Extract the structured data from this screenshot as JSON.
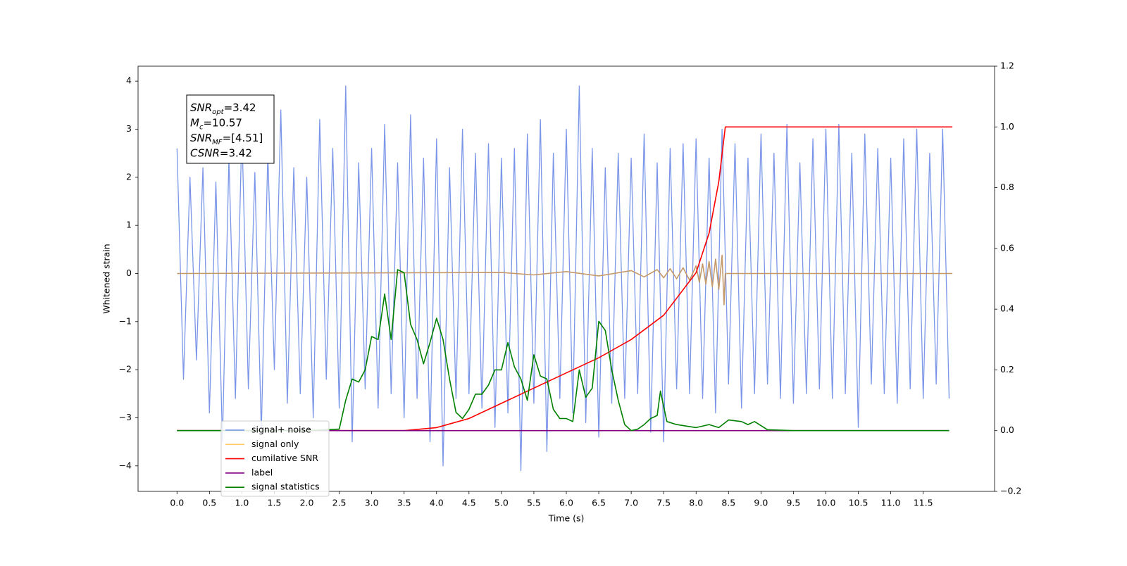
{
  "chart_data": {
    "type": "line",
    "xlabel": "Time (s)",
    "ylabel": "Whitened strain",
    "xlim": [
      -0.6,
      12.6
    ],
    "ylim": [
      -4.53,
      4.31
    ],
    "y2lim": [
      -0.2,
      1.2
    ],
    "xticks": [
      {
        "value": 0,
        "label": "0.0"
      },
      0.5,
      {
        "value": 1,
        "label": "1.0"
      },
      1.5,
      {
        "value": 2,
        "label": "2.0"
      },
      2.5,
      {
        "value": 3,
        "label": "3.0"
      },
      3.5,
      {
        "value": 4,
        "label": "4.0"
      },
      4.5,
      {
        "value": 5,
        "label": "5.0"
      },
      5.5,
      {
        "value": 6,
        "label": "6.0"
      },
      6.5,
      {
        "value": 7,
        "label": "7.0"
      },
      7.5,
      {
        "value": 8,
        "label": "8.0"
      },
      8.5,
      {
        "value": 9,
        "label": "9.0"
      },
      9.5,
      {
        "value": 10,
        "label": "10.0"
      },
      10.5,
      {
        "value": 11,
        "label": "11.0"
      },
      11.5
    ],
    "yticks": [
      {
        "value": -4,
        "label": "−4"
      },
      {
        "value": -3,
        "label": "−3"
      },
      {
        "value": -2,
        "label": "−2"
      },
      {
        "value": -1,
        "label": "−1"
      },
      0,
      1,
      2,
      3,
      4
    ],
    "y2ticks": [
      {
        "value": -0.2,
        "label": "−0.2"
      },
      {
        "value": 0,
        "label": "0.0"
      },
      0.2,
      0.4,
      0.6,
      0.8,
      {
        "value": 1,
        "label": "1.0"
      },
      1.2
    ],
    "annotation": [
      {
        "text": "SNR",
        "sub": "opt",
        "tail": "=3.42"
      },
      {
        "text": "M",
        "sub": "c",
        "tail": "=10.57"
      },
      {
        "text": "SNR",
        "sub": "MF",
        "tail": "=[4.51]"
      },
      {
        "text": "CSNR",
        "tail": "=3.42"
      }
    ],
    "series": [
      {
        "name": "signal+ noise",
        "color": "#7b96e8",
        "legend_color": "#6f8fe6",
        "x": [
          0,
          0.1,
          0.2,
          0.3,
          0.4,
          0.5,
          0.6,
          0.7,
          0.8,
          0.9,
          1,
          1.1,
          1.2,
          1.3,
          1.4,
          1.5,
          1.6,
          1.7,
          1.8,
          1.9,
          2,
          2.1,
          2.2,
          2.3,
          2.4,
          2.5,
          2.6,
          2.7,
          2.8,
          2.9,
          3,
          3.1,
          3.2,
          3.3,
          3.4,
          3.5,
          3.6,
          3.7,
          3.8,
          3.9,
          4,
          4.1,
          4.2,
          4.3,
          4.4,
          4.5,
          4.6,
          4.7,
          4.8,
          4.9,
          5,
          5.1,
          5.2,
          5.3,
          5.4,
          5.5,
          5.6,
          5.7,
          5.8,
          5.9,
          6,
          6.1,
          6.2,
          6.3,
          6.4,
          6.5,
          6.6,
          6.7,
          6.8,
          6.9,
          7,
          7.1,
          7.2,
          7.3,
          7.4,
          7.5,
          7.6,
          7.7,
          7.8,
          7.9,
          8,
          8.1,
          8.2,
          8.3,
          8.4,
          8.5,
          8.6,
          8.7,
          8.8,
          8.9,
          9,
          9.1,
          9.2,
          9.3,
          9.4,
          9.5,
          9.6,
          9.7,
          9.8,
          9.9,
          10,
          10.1,
          10.2,
          10.3,
          10.4,
          10.5,
          10.6,
          10.7,
          10.8,
          10.9,
          11,
          11.1,
          11.2,
          11.3,
          11.4,
          11.5,
          11.6,
          11.7,
          11.8,
          11.9
        ],
        "values": [
          2.6,
          -2.2,
          2.0,
          -1.8,
          2.2,
          -2.9,
          1.9,
          -3.5,
          2.4,
          -2.6,
          3.0,
          -2.4,
          2.1,
          -3.3,
          2.5,
          -2.0,
          3.4,
          -2.7,
          2.2,
          -2.5,
          2.0,
          -3.0,
          3.2,
          -2.2,
          2.6,
          -2.8,
          3.9,
          -3.5,
          2.3,
          -2.4,
          2.6,
          -2.8,
          3.1,
          -2.5,
          2.3,
          -3.0,
          3.3,
          -2.6,
          2.4,
          -3.5,
          2.8,
          -4.0,
          2.2,
          -2.6,
          3.0,
          -2.5,
          2.5,
          -2.8,
          2.7,
          -3.2,
          2.4,
          -2.9,
          2.6,
          -4.1,
          2.9,
          -2.7,
          3.2,
          -3.7,
          2.5,
          -2.6,
          3.0,
          -2.9,
          3.9,
          -3.1,
          2.6,
          -3.4,
          2.2,
          -2.7,
          2.5,
          -2.6,
          2.4,
          -2.5,
          2.9,
          -3.3,
          2.3,
          -3.5,
          2.6,
          -2.4,
          2.7,
          -2.5,
          2.8,
          -2.6,
          2.4,
          -2.9,
          3.0,
          -2.3,
          2.7,
          -2.8,
          2.4,
          -2.5,
          2.9,
          -2.3,
          2.5,
          -2.6,
          3.1,
          -2.7,
          2.3,
          -2.5,
          2.8,
          -2.4,
          3.0,
          -2.6,
          3.1,
          -2.5,
          2.5,
          -3.2,
          2.9,
          -2.3,
          2.6,
          -2.5,
          2.4,
          -2.7,
          2.8,
          -2.4,
          3.0,
          -2.6,
          2.5,
          -2.3,
          3.0,
          -2.6
        ]
      },
      {
        "name": "signal only",
        "color": "#c49a6c",
        "legend_color": "#ffc966",
        "x": [
          0,
          5.0,
          5.5,
          6.0,
          6.5,
          7.0,
          7.2,
          7.4,
          7.5,
          7.6,
          7.7,
          7.8,
          7.9,
          8.0,
          8.05,
          8.1,
          8.15,
          8.2,
          8.25,
          8.3,
          8.35,
          8.4,
          8.43,
          8.45,
          8.5,
          11.95
        ],
        "values": [
          0,
          0.02,
          -0.03,
          0.04,
          -0.05,
          0.06,
          -0.07,
          0.08,
          -0.09,
          0.1,
          -0.11,
          0.12,
          -0.14,
          0.16,
          -0.18,
          0.2,
          -0.22,
          0.25,
          -0.28,
          0.3,
          -0.33,
          0.38,
          -0.65,
          0,
          0,
          0
        ]
      },
      {
        "name": "cumilative SNR",
        "color": "#ff0000",
        "axis": "y2",
        "x": [
          0,
          3.5,
          4.0,
          4.5,
          5.0,
          5.5,
          6.0,
          6.5,
          7.0,
          7.5,
          8.0,
          8.2,
          8.35,
          8.45,
          11.95
        ],
        "values": [
          0,
          0,
          0.01,
          0.04,
          0.09,
          0.14,
          0.19,
          0.24,
          0.3,
          0.38,
          0.52,
          0.65,
          0.82,
          1.0,
          1.0
        ]
      },
      {
        "name": "label",
        "color": "#800080",
        "axis": "y2",
        "x": [
          0,
          11.9
        ],
        "values": [
          0,
          0
        ]
      },
      {
        "name": "signal statistics",
        "color": "#008000",
        "axis": "y2",
        "x": [
          0,
          0.5,
          1.0,
          1.5,
          2.0,
          2.5,
          2.6,
          2.7,
          2.8,
          2.9,
          3.0,
          3.1,
          3.2,
          3.3,
          3.4,
          3.5,
          3.6,
          3.7,
          3.8,
          3.9,
          4.0,
          4.1,
          4.2,
          4.3,
          4.4,
          4.5,
          4.6,
          4.7,
          4.8,
          4.9,
          5.0,
          5.1,
          5.2,
          5.3,
          5.4,
          5.5,
          5.6,
          5.7,
          5.8,
          5.9,
          6.0,
          6.1,
          6.2,
          6.3,
          6.4,
          6.5,
          6.6,
          6.7,
          6.8,
          6.9,
          7.0,
          7.1,
          7.2,
          7.3,
          7.4,
          7.45,
          7.55,
          7.7,
          8.0,
          8.2,
          8.35,
          8.5,
          8.7,
          8.8,
          8.9,
          9.1,
          9.5,
          11.9
        ],
        "values": [
          0,
          0,
          0,
          0,
          0,
          0.005,
          0.1,
          0.17,
          0.16,
          0.2,
          0.31,
          0.3,
          0.45,
          0.3,
          0.53,
          0.52,
          0.35,
          0.3,
          0.22,
          0.29,
          0.37,
          0.3,
          0.17,
          0.06,
          0.04,
          0.07,
          0.12,
          0.12,
          0.15,
          0.2,
          0.2,
          0.29,
          0.21,
          0.17,
          0.1,
          0.25,
          0.18,
          0.17,
          0.07,
          0.04,
          0.04,
          0.03,
          0.2,
          0.11,
          0.14,
          0.36,
          0.33,
          0.2,
          0.1,
          0.02,
          0,
          0.005,
          0.02,
          0.04,
          0.05,
          0.13,
          0.03,
          0.02,
          0.01,
          0.02,
          0.01,
          0.035,
          0.03,
          0.02,
          0.03,
          0.003,
          0,
          0
        ]
      }
    ]
  }
}
